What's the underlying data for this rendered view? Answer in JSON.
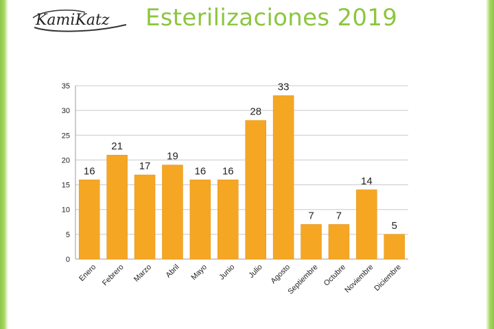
{
  "header": {
    "logo_text": "KamiKatz",
    "title": "Esterilizaciones 2019"
  },
  "colors": {
    "bar": "#f5a623",
    "title": "#8cc63f",
    "frame": "#8fc54a"
  },
  "chart_data": {
    "type": "bar",
    "title": "Esterilizaciones 2019",
    "categories": [
      "Enero",
      "Febrero",
      "Marzo",
      "Abril",
      "Mayo",
      "Junio",
      "Julio",
      "Agosto",
      "Septiembre",
      "Octubre",
      "Noviembre",
      "Diciembre"
    ],
    "values": [
      16,
      21,
      17,
      19,
      16,
      16,
      28,
      33,
      7,
      7,
      14,
      5
    ],
    "xlabel": "",
    "ylabel": "",
    "ylim": [
      0,
      35
    ],
    "yticks": [
      0,
      5,
      10,
      15,
      20,
      25,
      30,
      35
    ],
    "grid": true,
    "data_labels": true,
    "legend": "none"
  }
}
